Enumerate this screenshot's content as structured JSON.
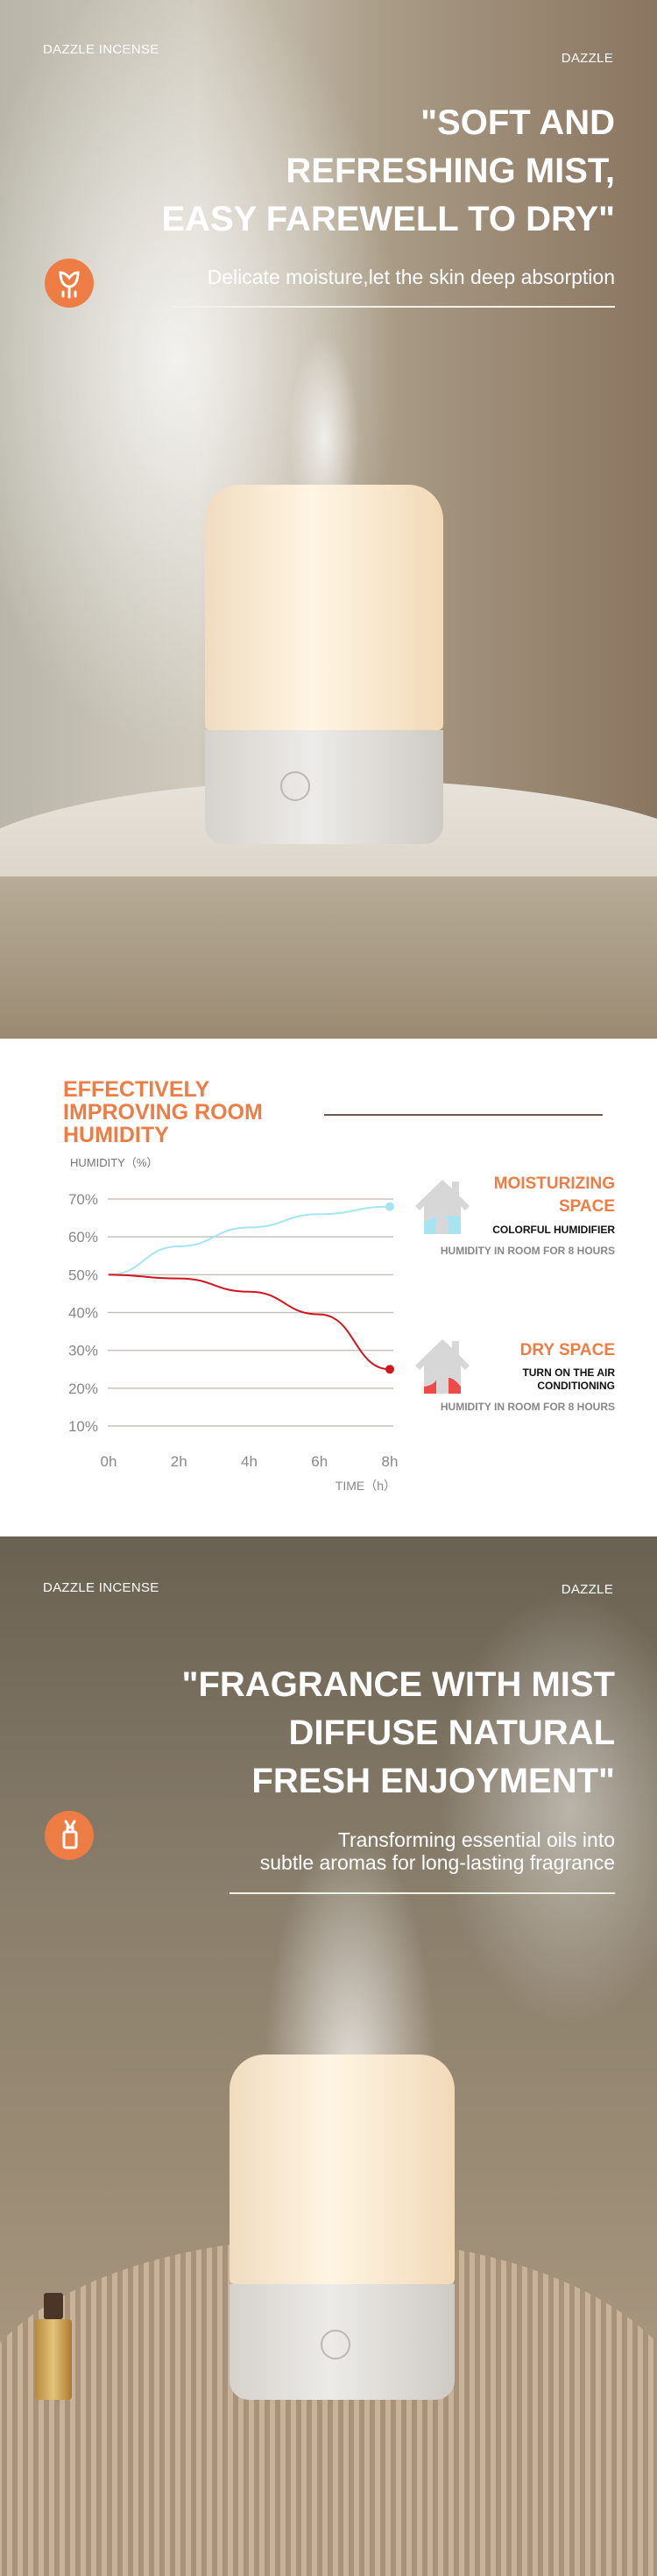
{
  "section1": {
    "brand_left": "DAZZLE INCENSE",
    "brand_right": "DAZZLE",
    "title_lines": [
      "\"SOFT AND",
      "REFRESHING MIST,",
      "EASY FAREWELL TO DRY\""
    ],
    "subtitle": "Delicate moisture,let the skin deep absorption",
    "icon": "flower-icon"
  },
  "section2": {
    "title_lines": [
      "EFFECTIVELY",
      "IMPROVING ROOM",
      "HUMIDITY"
    ],
    "moist": {
      "title_lines": [
        "MOISTURIZING",
        "SPACE"
      ],
      "label": "COLORFUL HUMIDIFIER",
      "note": "HUMIDITY IN ROOM FOR 8 HOURS",
      "color": "#a6e4f2"
    },
    "dry": {
      "title": "DRY SPACE",
      "label_lines": [
        "TURN ON THE AIR",
        "CONDITIONING"
      ],
      "note": "HUMIDITY IN ROOM FOR 8 HOURS",
      "color": "#e8343a"
    }
  },
  "chart_data": {
    "type": "line",
    "title": "EFFECTIVELY IMPROVING ROOM HUMIDITY",
    "ylabel": "HUMIDITY（%）",
    "xlabel": "TIME（h）",
    "x": [
      0,
      2,
      4,
      6,
      8
    ],
    "xticks": [
      "0h",
      "2h",
      "4h",
      "6h",
      "8h"
    ],
    "yticks": [
      "70%",
      "60%",
      "50%",
      "40%",
      "30%",
      "20%",
      "10%"
    ],
    "ytick_values": [
      70,
      60,
      50,
      40,
      30,
      20,
      10
    ],
    "ylim": [
      10,
      70
    ],
    "xlim": [
      0,
      8
    ],
    "grid": true,
    "series": [
      {
        "name": "Moisturizing space (colorful humidifier)",
        "values": [
          50,
          57.5,
          62.5,
          66,
          68
        ],
        "color": "#a6e4f2"
      },
      {
        "name": "Dry space (air conditioning)",
        "values": [
          50,
          49,
          45.5,
          39.5,
          25
        ],
        "color": "#d0161e"
      }
    ]
  },
  "section3": {
    "brand_left": "DAZZLE INCENSE",
    "brand_right": "DAZZLE",
    "title_lines": [
      "\"FRAGRANCE WITH MIST",
      "DIFFUSE NATURAL",
      "FRESH ENJOYMENT\""
    ],
    "subtitle_lines": [
      "Transforming essential oils into",
      "subtle aromas for long-lasting fragrance"
    ],
    "icon": "oil-bottle-icon"
  }
}
